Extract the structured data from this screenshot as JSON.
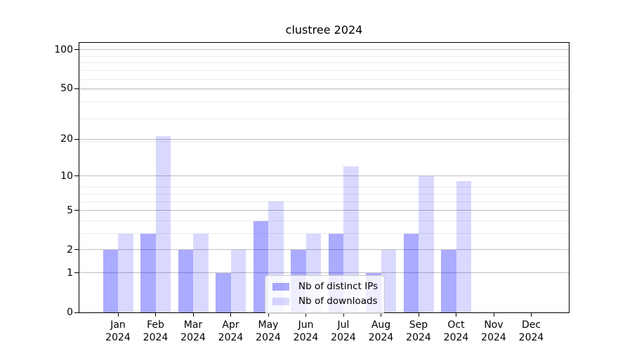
{
  "title": "clustree 2024",
  "chart_data": {
    "type": "bar",
    "title": "clustree 2024",
    "categories": [
      "Jan",
      "Feb",
      "Mar",
      "Apr",
      "May",
      "Jun",
      "Jul",
      "Aug",
      "Sep",
      "Oct",
      "Nov",
      "Dec"
    ],
    "category_year": "2024",
    "series": [
      {
        "name": "Nb of distinct IPs",
        "color": "#0000ff54",
        "values": [
          2,
          3,
          2,
          1,
          4,
          2,
          3,
          1,
          3,
          2,
          0,
          0
        ]
      },
      {
        "name": "Nb of downloads",
        "color": "#0000ff26",
        "values": [
          3,
          21,
          3,
          2,
          6,
          3,
          12,
          2,
          10,
          9,
          0,
          0
        ]
      }
    ],
    "xlabel": "",
    "ylabel": "",
    "yscale": "log1p",
    "ylim": [
      0,
      112
    ],
    "yticks_major": [
      0,
      1,
      2,
      5,
      10,
      20,
      50,
      100
    ],
    "yticks_minor": [
      3,
      4,
      6,
      7,
      8,
      19,
      29,
      39,
      49,
      59,
      69,
      79,
      89
    ],
    "grid": true,
    "legend_position": "lower-center-inside"
  },
  "colors": {
    "major_grid": "#bfbfbf",
    "minor_grid": "#ececec",
    "spine": "#000000",
    "legend_border": "#cccccc",
    "bar_distinct_ips": "#0000ff54",
    "bar_downloads": "#0000ff26"
  }
}
